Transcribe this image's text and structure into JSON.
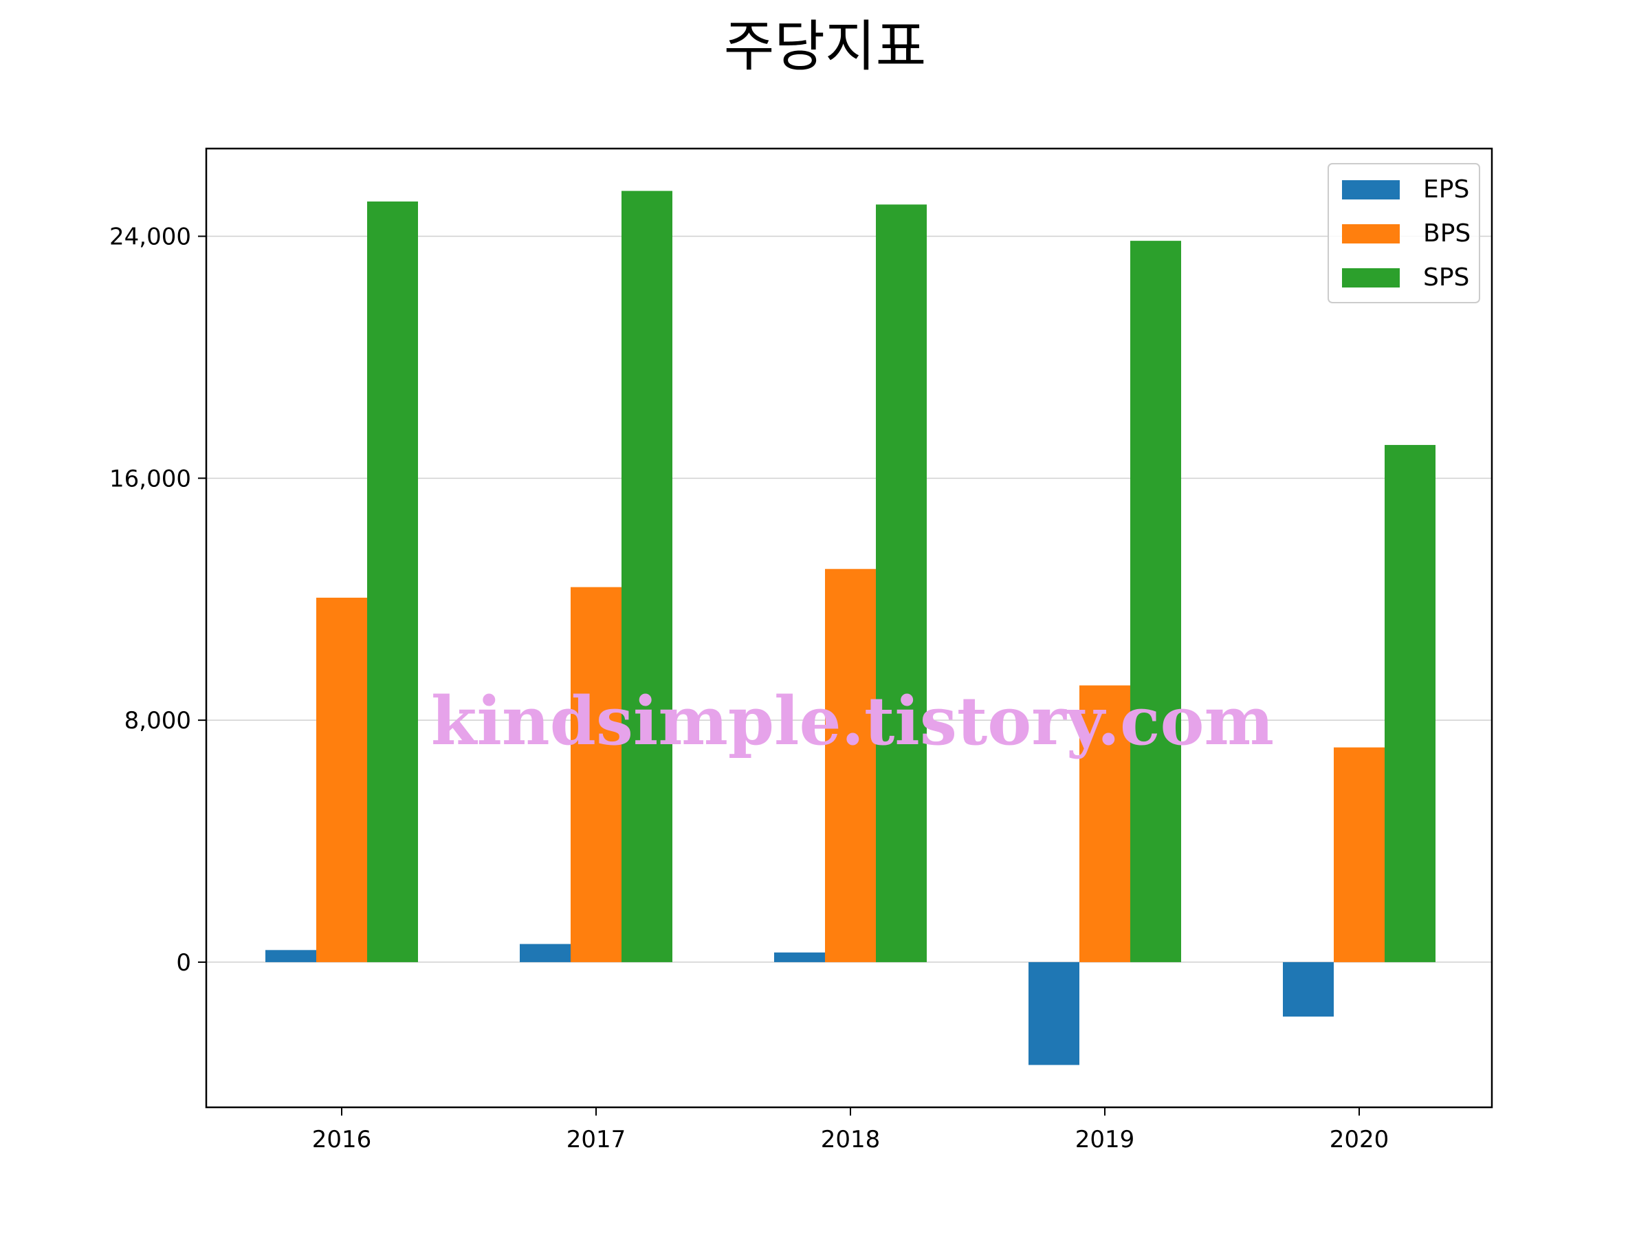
{
  "chart_data": {
    "type": "bar",
    "title": "주당지표",
    "xlabel": "",
    "ylabel": "",
    "categories": [
      "2016",
      "2017",
      "2018",
      "2019",
      "2020"
    ],
    "series": [
      {
        "name": "EPS",
        "color": "#1f77b4",
        "values": [
          400,
          600,
          320,
          -3400,
          -1800
        ]
      },
      {
        "name": "BPS",
        "color": "#ff7f0e",
        "values": [
          12050,
          12400,
          13000,
          9150,
          7100
        ]
      },
      {
        "name": "SPS",
        "color": "#2ca02c",
        "values": [
          25150,
          25500,
          25050,
          23850,
          17100
        ]
      }
    ],
    "ylim": [
      -4800,
      26900
    ],
    "yticks": [
      0,
      8000,
      16000,
      24000
    ],
    "ytick_labels": [
      "0",
      "8,000",
      "16,000",
      "24,000"
    ],
    "grid": "y",
    "legend_position": "top-right"
  },
  "watermark": "kindsimple.tistory.com"
}
